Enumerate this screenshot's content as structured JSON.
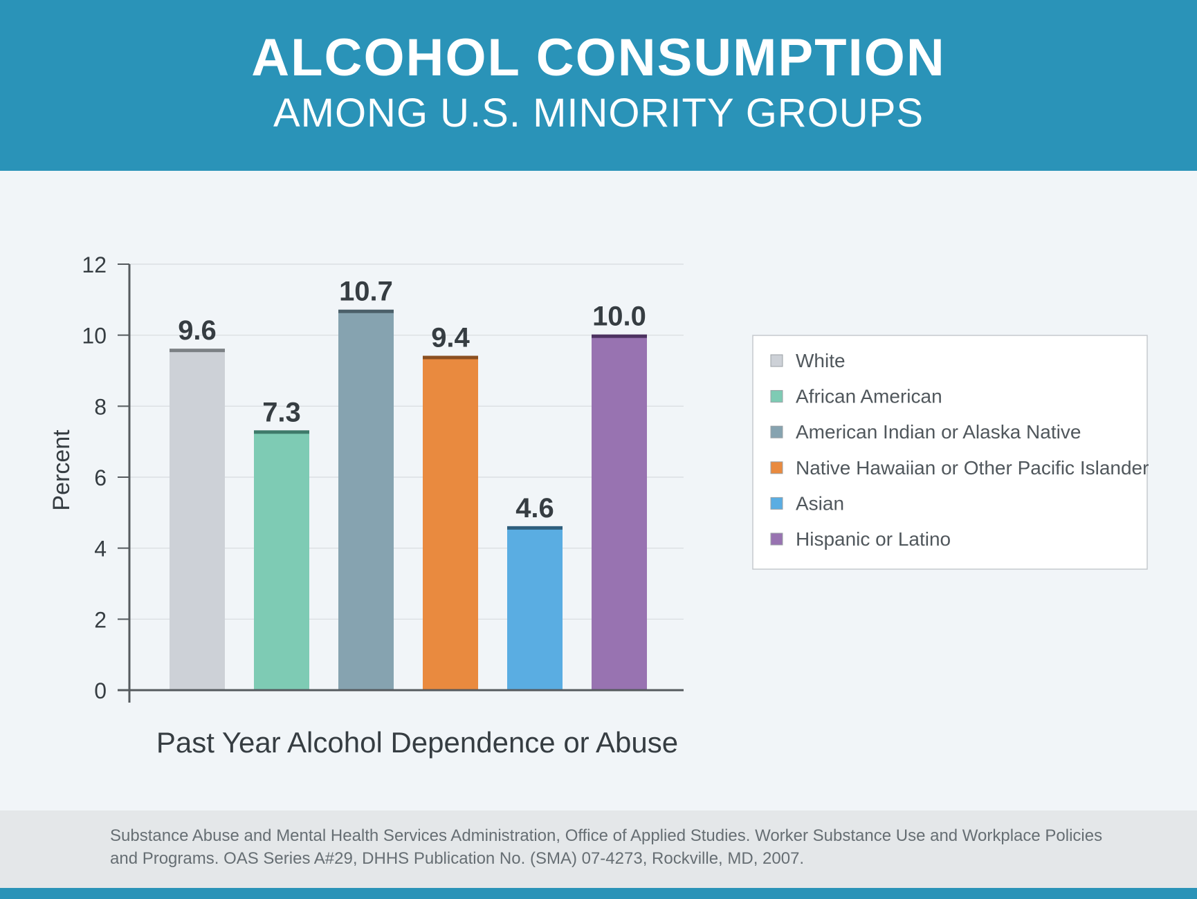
{
  "header": {
    "title": "ALCOHOL CONSUMPTION",
    "subtitle": "AMONG U.S. MINORITY GROUPS"
  },
  "chart_data": {
    "type": "bar",
    "categories": [
      "White",
      "African American",
      "American Indian or Alaska Native",
      "Native Hawaiian or Other Pacific Islander",
      "Asian",
      "Hispanic or Latino"
    ],
    "values": [
      9.6,
      7.3,
      10.7,
      9.4,
      4.6,
      10.0
    ],
    "value_labels": [
      "9.6",
      "7.3",
      "10.7",
      "9.4",
      "4.6",
      "10.0"
    ],
    "colors": [
      "#cdd1d7",
      "#7ecbb4",
      "#86a3b0",
      "#e98a3f",
      "#5aade2",
      "#9873b1"
    ],
    "cap_colors": [
      "#7b8084",
      "#3e7a6a",
      "#4b5f69",
      "#8b4f20",
      "#2f5f7d",
      "#4c3260"
    ],
    "xlabel": "Past Year Alcohol Dependence or Abuse",
    "ylabel": "Percent",
    "ylim": [
      0,
      12
    ],
    "yticks": [
      0,
      2,
      4,
      6,
      8,
      10,
      12
    ],
    "grid": true,
    "legend_position": "right"
  },
  "footer": {
    "source": "Substance Abuse and Mental Health Services Administration, Office of Applied Studies. Worker Substance Use and Workplace Policies and Programs. OAS Series A#29, DHHS Publication No. (SMA) 07-4273, Rockville, MD, 2007."
  }
}
